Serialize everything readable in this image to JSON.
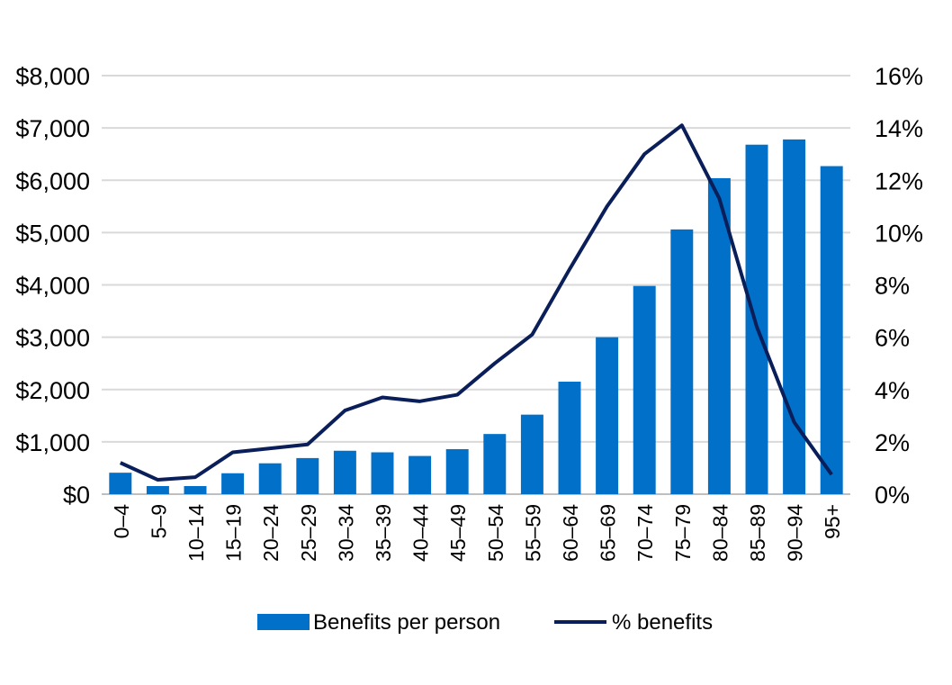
{
  "chart_data": {
    "type": "bar+line",
    "categories": [
      "0–4",
      "5–9",
      "10–14",
      "15–19",
      "20–24",
      "25–29",
      "30–34",
      "35–39",
      "40–44",
      "45–49",
      "50–54",
      "55–59",
      "60–64",
      "65–69",
      "70–74",
      "75–79",
      "80–84",
      "85–89",
      "90–94",
      "95+"
    ],
    "series": [
      {
        "name": "Benefits per person",
        "type": "bar",
        "axis": "left",
        "color": "#0070C8",
        "values": [
          410,
          155,
          155,
          400,
          590,
          690,
          830,
          800,
          730,
          860,
          1150,
          1520,
          2150,
          3000,
          3980,
          5060,
          6040,
          6680,
          6780,
          6270
        ]
      },
      {
        "name": "% benefits",
        "type": "line",
        "axis": "right",
        "color": "#0A1E5A",
        "values": [
          1.2,
          0.55,
          0.65,
          1.6,
          1.75,
          1.9,
          3.2,
          3.7,
          3.55,
          3.8,
          5.0,
          6.1,
          8.6,
          11.0,
          13.0,
          14.1,
          11.3,
          6.4,
          2.75,
          0.75
        ]
      }
    ],
    "y_left": {
      "min": 0,
      "max": 8000,
      "ticks": [
        "$0",
        "$1,000",
        "$2,000",
        "$3,000",
        "$4,000",
        "$5,000",
        "$6,000",
        "$7,000",
        "$8,000"
      ]
    },
    "y_right": {
      "min": 0,
      "max": 16,
      "ticks": [
        "0%",
        "2%",
        "4%",
        "6%",
        "8%",
        "10%",
        "12%",
        "14%",
        "16%"
      ]
    },
    "grid": true,
    "legend_position": "bottom"
  }
}
